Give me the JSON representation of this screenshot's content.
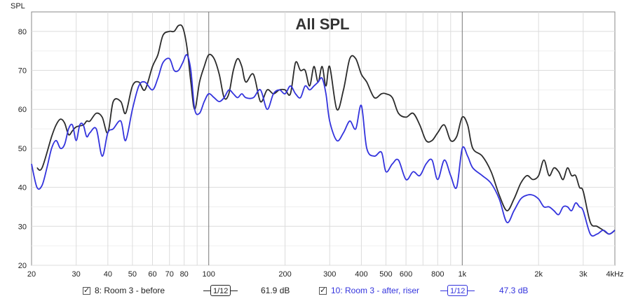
{
  "chart_data": {
    "type": "line",
    "title": "All SPL",
    "ylabel": "SPL",
    "xlabel": "",
    "xscale": "log",
    "xlim": [
      20,
      4000
    ],
    "ylim": [
      20,
      85
    ],
    "grid": true,
    "x_ticks": [
      {
        "value": 20,
        "label": "20"
      },
      {
        "value": 30,
        "label": "30"
      },
      {
        "value": 40,
        "label": "40"
      },
      {
        "value": 50,
        "label": "50"
      },
      {
        "value": 60,
        "label": "60"
      },
      {
        "value": 70,
        "label": "70"
      },
      {
        "value": 80,
        "label": "80"
      },
      {
        "value": 100,
        "label": "100"
      },
      {
        "value": 200,
        "label": "200"
      },
      {
        "value": 300,
        "label": "300"
      },
      {
        "value": 400,
        "label": "400"
      },
      {
        "value": 500,
        "label": "500"
      },
      {
        "value": 600,
        "label": "600"
      },
      {
        "value": 800,
        "label": "800"
      },
      {
        "value": 1000,
        "label": "1k"
      },
      {
        "value": 2000,
        "label": "2k"
      },
      {
        "value": 3000,
        "label": "3k"
      },
      {
        "value": 4000,
        "label": "4kHz"
      }
    ],
    "y_ticks": [
      20,
      30,
      40,
      50,
      60,
      70,
      80
    ],
    "series": [
      {
        "name": "8: Room 3 - before",
        "color": "#2b2b2b",
        "x": [
          21,
          22,
          24,
          25,
          26,
          27,
          28,
          29,
          30,
          32,
          33,
          34,
          36,
          38,
          40,
          42,
          45,
          47,
          50,
          53,
          56,
          60,
          63,
          66,
          70,
          73,
          76,
          79,
          82,
          85,
          88,
          92,
          96,
          100,
          105,
          110,
          115,
          120,
          125,
          130,
          135,
          140,
          150,
          160,
          170,
          180,
          190,
          200,
          210,
          220,
          230,
          240,
          250,
          260,
          270,
          280,
          290,
          300,
          320,
          340,
          360,
          380,
          400,
          420,
          450,
          480,
          500,
          530,
          560,
          600,
          640,
          680,
          720,
          760,
          800,
          850,
          900,
          950,
          1000,
          1050,
          1100,
          1200,
          1300,
          1400,
          1500,
          1600,
          1700,
          1800,
          1900,
          2000,
          2100,
          2200,
          2300,
          2400,
          2500,
          2600,
          2700,
          2800,
          2900,
          3000,
          3200,
          3400,
          3600,
          3800,
          4000
        ],
        "y": [
          45,
          45,
          53,
          56,
          57.5,
          56.5,
          53.5,
          54.5,
          55.5,
          56,
          57,
          57,
          59,
          58,
          54,
          62,
          62,
          59,
          66,
          67,
          65,
          71,
          74,
          79,
          80,
          80,
          81.5,
          81,
          76,
          67,
          60,
          67,
          71,
          74,
          73,
          69,
          63,
          64,
          70,
          73,
          71,
          67,
          69,
          62,
          65,
          64,
          65,
          65,
          64,
          72,
          70,
          70,
          66,
          71,
          67,
          71,
          66,
          71,
          60,
          65,
          73,
          73,
          69,
          67,
          63,
          64,
          64,
          63,
          59,
          58,
          59,
          56,
          52,
          52,
          54,
          56,
          52,
          53,
          58,
          56,
          50,
          48,
          44,
          38,
          34,
          37,
          41,
          43,
          42,
          43,
          47,
          43,
          45,
          44,
          42,
          45,
          43,
          43,
          40,
          39,
          31,
          30,
          29,
          28,
          29
        ]
      },
      {
        "name": "10: Room 3 - after, riser",
        "color": "#3333dd",
        "x": [
          20,
          21,
          22,
          23,
          24,
          25,
          26,
          27,
          28,
          29,
          30,
          31,
          32,
          33,
          34,
          36,
          38,
          40,
          42,
          45,
          47,
          50,
          53,
          56,
          60,
          63,
          66,
          70,
          73,
          76,
          79,
          82,
          85,
          88,
          92,
          96,
          100,
          105,
          110,
          115,
          120,
          125,
          130,
          135,
          140,
          150,
          160,
          170,
          180,
          190,
          200,
          210,
          220,
          230,
          240,
          250,
          260,
          270,
          280,
          290,
          300,
          320,
          340,
          360,
          380,
          400,
          420,
          450,
          480,
          500,
          530,
          560,
          600,
          640,
          680,
          720,
          760,
          800,
          850,
          900,
          950,
          1000,
          1050,
          1100,
          1200,
          1300,
          1400,
          1500,
          1600,
          1700,
          1800,
          1900,
          2000,
          2100,
          2200,
          2300,
          2400,
          2500,
          2600,
          2700,
          2800,
          2900,
          3000,
          3200,
          3400,
          3600,
          3800,
          4000
        ],
        "y": [
          46,
          40,
          40.5,
          45,
          50,
          52,
          50,
          51,
          55,
          56,
          52,
          56,
          56,
          53,
          54,
          55,
          48,
          54,
          55,
          57,
          52,
          60,
          66,
          67,
          65,
          68,
          72,
          73,
          70,
          70,
          72,
          74,
          70,
          60,
          59,
          62,
          64,
          63,
          62,
          63,
          65,
          64,
          63,
          64,
          63,
          63,
          65,
          60,
          64,
          65,
          64,
          66,
          64,
          63,
          66,
          65,
          66,
          67,
          68,
          64,
          57,
          52,
          54,
          57,
          55,
          61,
          50,
          48,
          49,
          44,
          46,
          47,
          42,
          44,
          43,
          46,
          47,
          42,
          47,
          43,
          40,
          50,
          48,
          45,
          43,
          41,
          37,
          31,
          34,
          37,
          38,
          38,
          37,
          35,
          35,
          34,
          33,
          35,
          35,
          34,
          36,
          35,
          34,
          28,
          28,
          29,
          28,
          29
        ]
      }
    ],
    "legend_extra": [
      {
        "smoothing": "1/12",
        "level": "61.9 dB"
      },
      {
        "smoothing": "1/12",
        "level": "47.3 dB"
      }
    ]
  }
}
